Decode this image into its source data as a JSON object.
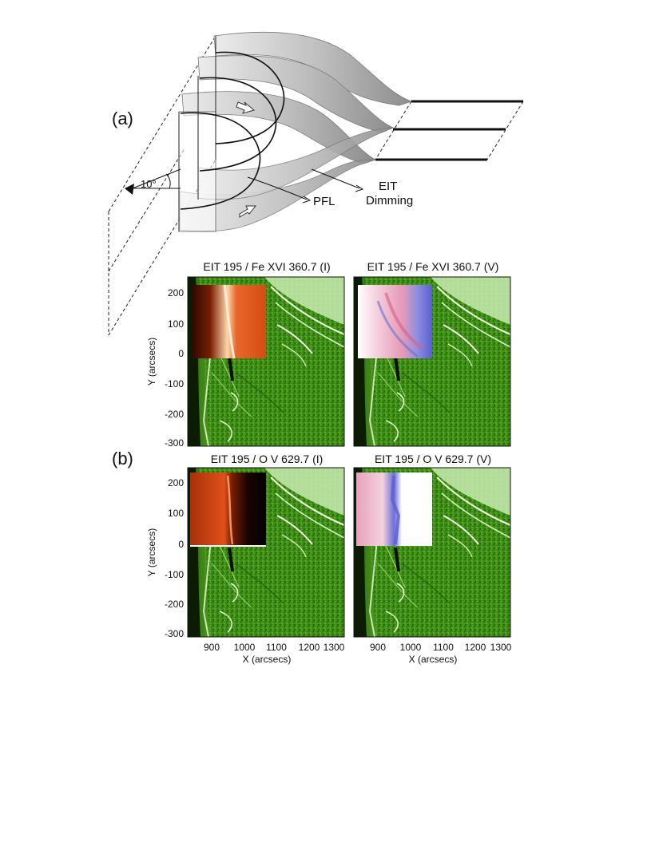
{
  "panel_a": {
    "label": "(a)",
    "angle_label": "10°",
    "pfl_label": "PFL",
    "dimming_label_line1": "EIT",
    "dimming_label_line2": "Dimming"
  },
  "panel_b": {
    "label": "(b)",
    "titles": {
      "fe_i": "EIT 195 / Fe XVI 360.7 (I)",
      "fe_v": "EIT 195 / Fe XVI 360.7 (V)",
      "ov_i": "EIT 195 / O V 629.7 (I)",
      "ov_v": "EIT 195 / O V 629.7 (V)"
    },
    "y_axis_label": "Y (arcsecs)",
    "x_axis_label": "X (arcsecs)",
    "y_ticks": [
      "200",
      "100",
      "0",
      "-100",
      "-200",
      "-300"
    ],
    "x_ticks": [
      "900",
      "1000",
      "1100",
      "1200",
      "1300"
    ]
  },
  "colors": {
    "eit_green": "#3f8f17",
    "intensity_red": "#c8400c",
    "velocity_red": "#e68aa6",
    "velocity_blue": "#5b5fd0",
    "tube_gray": "#b0b0b0"
  }
}
